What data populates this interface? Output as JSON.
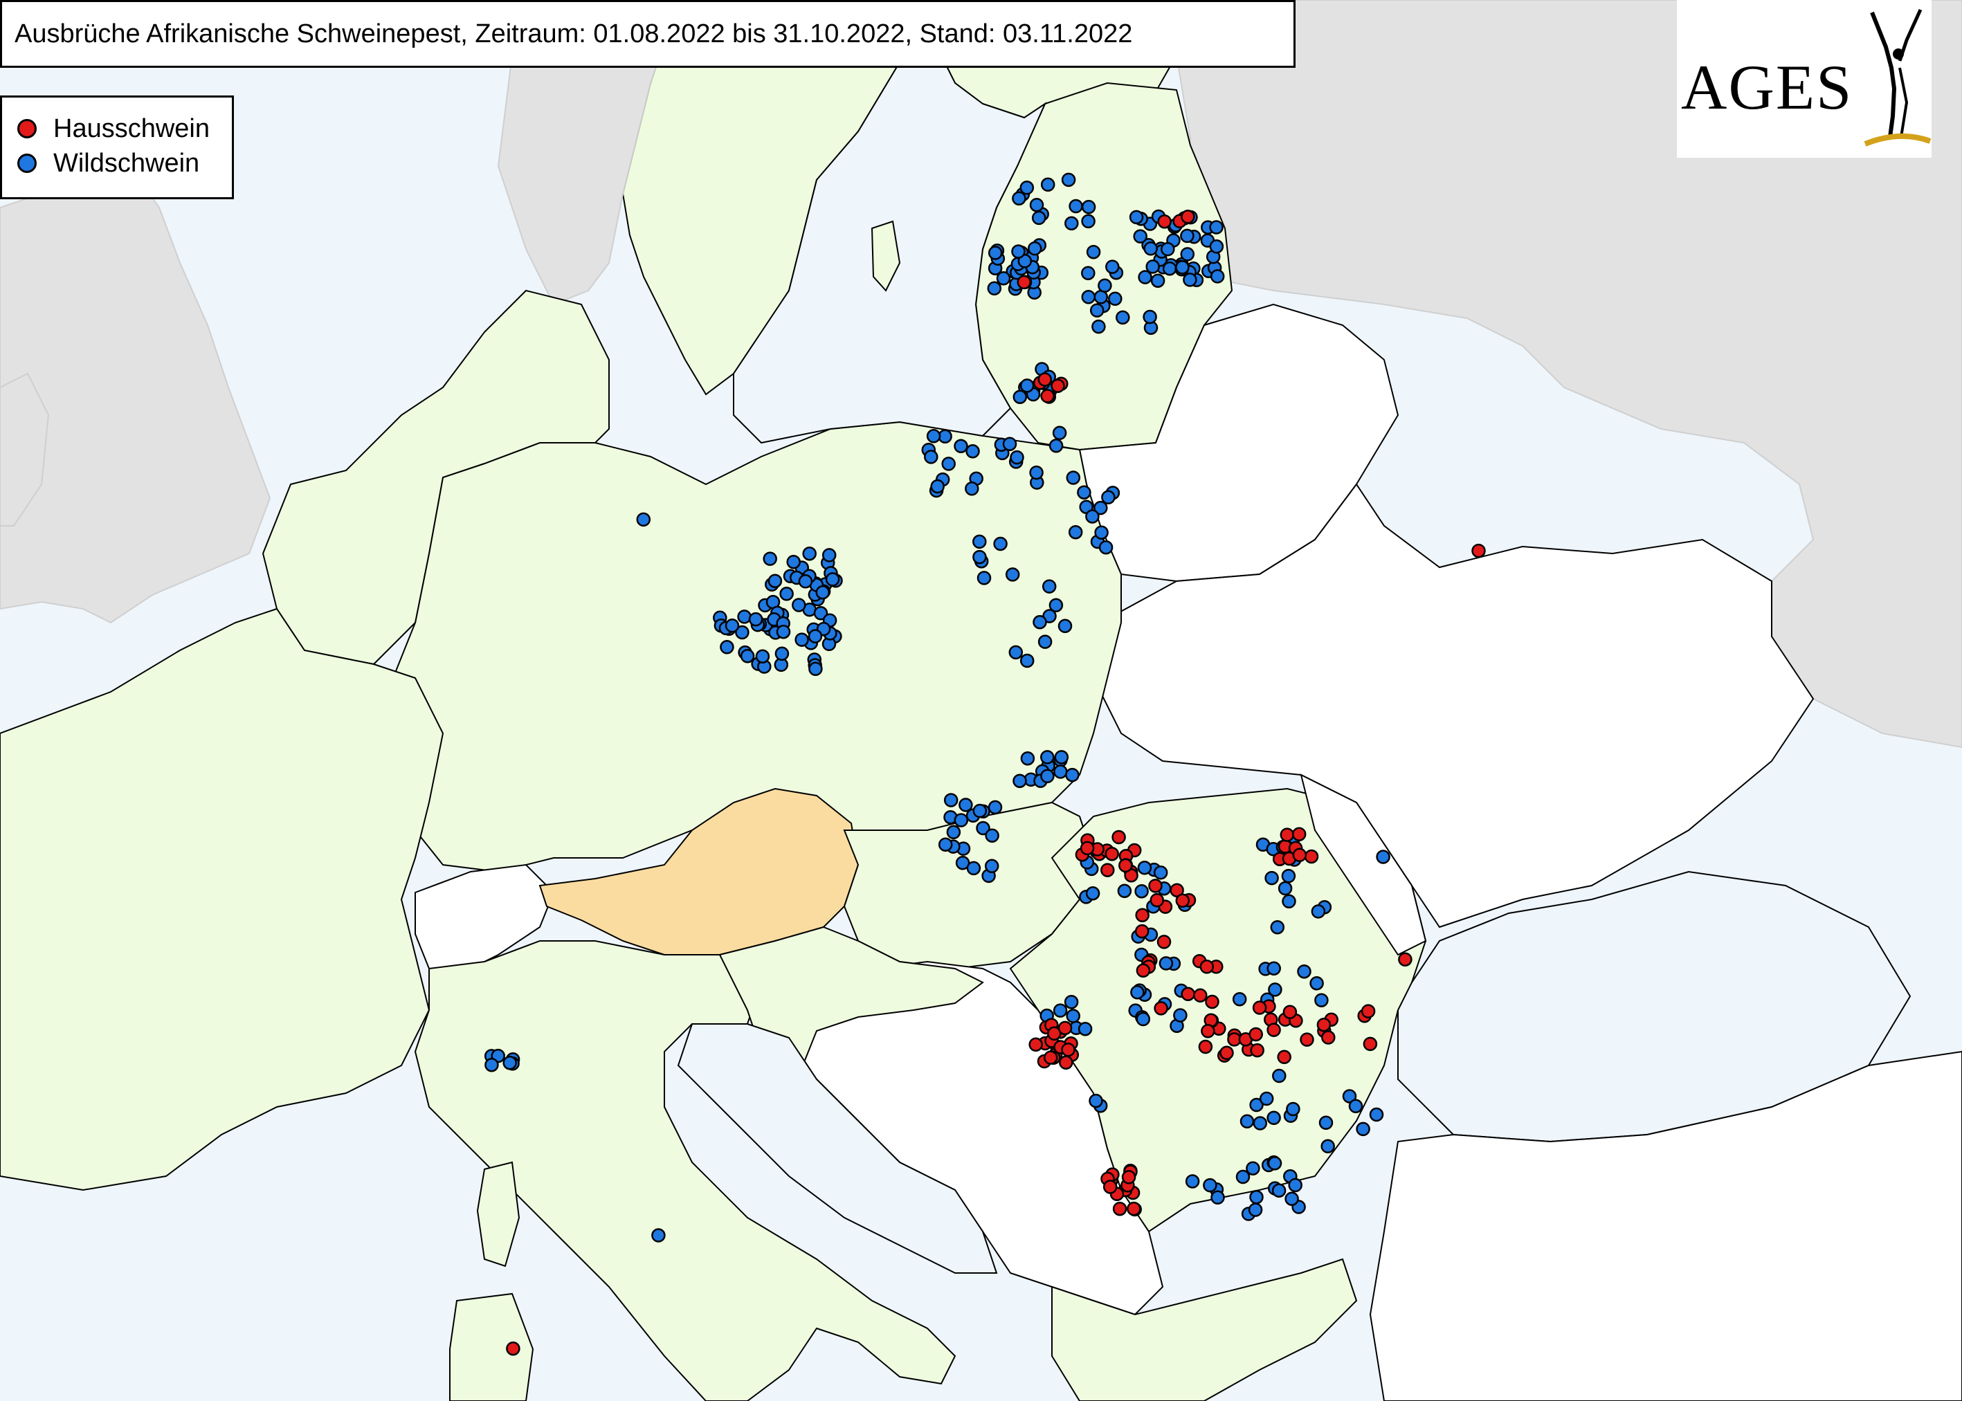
{
  "title": "Ausbrüche Afrikanische Schweinepest, Zeitraum: 01.08.2022 bis 31.10.2022, Stand: 03.11.2022",
  "legend": {
    "domestic": {
      "label": "Hausschwein",
      "color": "#e21a1a"
    },
    "wild": {
      "label": "Wildschwein",
      "color": "#1f77e0"
    }
  },
  "logo": {
    "text": "AGES",
    "accent_color": "#d4a21a"
  },
  "colors": {
    "sea": "#eef5fb",
    "affected_eu": "#eefbdf",
    "austria": "#fbdca0",
    "non_eu": "#ffffff",
    "outside_grey": "#e2e2e2",
    "border": "#000000"
  }
}
